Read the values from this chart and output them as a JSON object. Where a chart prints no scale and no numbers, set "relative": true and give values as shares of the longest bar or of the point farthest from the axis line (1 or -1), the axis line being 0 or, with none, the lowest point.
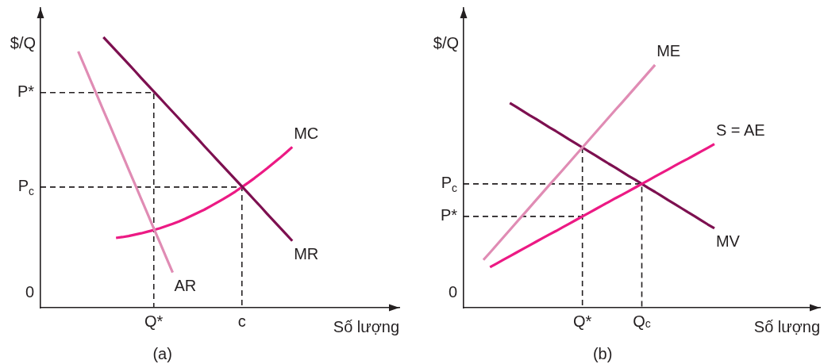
{
  "chart_data": [
    {
      "type": "line",
      "title": "(a)",
      "xlabel": "Số lượng",
      "ylabel": "$/Q",
      "relative": true,
      "categories": [
        null,
        null,
        null,
        null,
        null,
        null,
        null,
        null,
        null,
        null,
        null,
        null,
        null,
        null,
        null,
        null,
        null,
        null,
        "Q*",
        null,
        null,
        null,
        null,
        null,
        null,
        null,
        null,
        null,
        null,
        null,
        null,
        null,
        "c",
        null,
        null,
        null,
        null,
        null,
        null,
        null,
        null,
        null,
        null,
        null,
        null,
        null,
        null,
        null,
        null,
        null,
        null,
        null,
        null,
        null,
        null,
        null,
        null,
        null
      ],
      "annotations": [
        "0"
      ],
      "series": [
        {
          "name": "AR",
          "color": "#e08cb4",
          "values": [
            null,
            null,
            null,
            null,
            null,
            null,
            0.947,
            0.893,
            0.838,
            0.784,
            0.729,
            0.675,
            0.62,
            0.566,
            0.511,
            0.457,
            0.402,
            0.348,
            0.293,
            0.239,
            0.184,
            0.13,
            null,
            null,
            null,
            null,
            null,
            null,
            null,
            null,
            null,
            null,
            null,
            null,
            null,
            null,
            null,
            null,
            null,
            null,
            null,
            null,
            null,
            null,
            null,
            null,
            null,
            null,
            null,
            null,
            null,
            null,
            null,
            null,
            null,
            null,
            null,
            null
          ]
        },
        {
          "name": "MR",
          "color": "#7d1050",
          "values": [
            null,
            null,
            null,
            null,
            null,
            null,
            null,
            null,
            null,
            null,
            1,
            0.975,
            0.95,
            0.925,
            0.9,
            0.875,
            0.849,
            0.824,
            0.799,
            0.774,
            0.749,
            0.724,
            0.699,
            0.674,
            0.649,
            0.624,
            0.598,
            0.573,
            0.548,
            0.523,
            0.498,
            0.473,
            0.448,
            0.423,
            0.398,
            0.373,
            0.347,
            0.322,
            0.297,
            0.272,
            0.247,
            null,
            null,
            null,
            null,
            null,
            null,
            null,
            null,
            null,
            null,
            null,
            null,
            null,
            null,
            null,
            null,
            null
          ]
        },
        {
          "name": "MC",
          "color": "#ec1a84",
          "values": [
            null,
            null,
            null,
            null,
            null,
            null,
            null,
            null,
            null,
            null,
            null,
            null,
            0.258,
            0.261,
            0.265,
            0.27,
            0.275,
            0.281,
            0.287,
            0.294,
            0.302,
            0.31,
            0.319,
            0.329,
            0.34,
            0.351,
            0.362,
            0.375,
            0.388,
            0.401,
            0.415,
            0.43,
            0.446,
            0.462,
            0.479,
            0.497,
            0.515,
            0.534,
            0.553,
            0.573,
            0.594,
            null,
            null,
            null,
            null,
            null,
            null,
            null,
            null,
            null,
            null,
            null,
            null,
            null,
            null,
            null,
            null,
            null
          ]
        },
        {
          "type": "step",
          "name": "P*",
          "color": "#231f20",
          "line_style": "dashed",
          "values": [
            0.795,
            0.795,
            0.795,
            0.795,
            0.795,
            0.795,
            0.795,
            0.795,
            0.795,
            0.795,
            0.795,
            0.795,
            0.795,
            0.795,
            0.795,
            0.795,
            0.795,
            0.795,
            0.795,
            0,
            null,
            null,
            null,
            null,
            null,
            null,
            null,
            null,
            null,
            null,
            null,
            null,
            null,
            null,
            null,
            null,
            null,
            null,
            null,
            null,
            null,
            null,
            null,
            null,
            null,
            null,
            null,
            null,
            null,
            null,
            null,
            null,
            null,
            null,
            null,
            null,
            null,
            null
          ]
        },
        {
          "type": "step",
          "name": "P$_{c}$",
          "color": "#231f20",
          "line_style": "dashed",
          "values": [
            0.446,
            0.446,
            0.446,
            0.446,
            0.446,
            0.446,
            0.446,
            0.446,
            0.446,
            0.446,
            0.446,
            0.446,
            0.446,
            0.446,
            0.446,
            0.446,
            0.446,
            0.446,
            0.446,
            0.446,
            0.446,
            0.446,
            0.446,
            0.446,
            0.446,
            0.446,
            0.446,
            0.446,
            0.446,
            0.446,
            0.446,
            0.446,
            0.446,
            0,
            null,
            null,
            null,
            null,
            null,
            null,
            null,
            null,
            null,
            null,
            null,
            null,
            null,
            null,
            null,
            null,
            null,
            null,
            null,
            null,
            null,
            null,
            null,
            null
          ]
        }
      ]
    },
    {
      "type": "line",
      "title": "(b)",
      "xlabel": "Số lượng",
      "ylabel": "$/Q",
      "relative": true,
      "categories": [
        null,
        null,
        null,
        null,
        null,
        null,
        null,
        null,
        null,
        null,
        null,
        null,
        null,
        null,
        null,
        null,
        null,
        null,
        "Q*",
        null,
        null,
        null,
        null,
        null,
        null,
        null,
        null,
        "Q$_{c}$",
        null,
        null,
        null,
        null,
        null,
        null,
        null,
        null,
        null,
        null,
        null,
        null,
        null,
        null,
        null,
        null,
        null,
        null,
        null,
        null,
        null,
        null,
        null,
        null,
        null,
        null,
        null
      ],
      "annotations": [
        "0"
      ],
      "series": [
        {
          "name": "ME",
          "color": "#e08cb4",
          "values": [
            null,
            null,
            null,
            0.197,
            0.227,
            0.258,
            0.289,
            0.32,
            0.351,
            0.382,
            0.413,
            0.444,
            0.475,
            0.506,
            0.536,
            0.567,
            0.598,
            0.629,
            0.66,
            0.691,
            0.722,
            0.753,
            0.784,
            0.815,
            0.845,
            0.876,
            0.907,
            0.938,
            0.969,
            1,
            null,
            null,
            null,
            null,
            null,
            null,
            null,
            null,
            null,
            null,
            null,
            null,
            null,
            null,
            null,
            null,
            null,
            null,
            null,
            null,
            null,
            null,
            null,
            null,
            null
          ]
        },
        {
          "name": "S = AE",
          "color": "#ec1a84",
          "values": [
            null,
            null,
            null,
            null,
            0.167,
            0.182,
            0.197,
            0.212,
            0.227,
            0.242,
            0.257,
            0.272,
            0.287,
            0.302,
            0.316,
            0.331,
            0.346,
            0.361,
            0.376,
            0.391,
            0.406,
            0.421,
            0.436,
            0.451,
            0.465,
            0.48,
            0.495,
            0.51,
            0.525,
            0.54,
            0.555,
            0.57,
            0.585,
            0.6,
            0.614,
            0.629,
            0.644,
            0.659,
            0.674,
            null,
            null,
            null,
            null,
            null,
            null,
            null,
            null,
            null,
            null,
            null,
            null,
            null,
            null,
            null,
            null
          ]
        },
        {
          "name": "MV",
          "color": "#7d1050",
          "values": [
            null,
            null,
            null,
            null,
            null,
            null,
            null,
            0.843,
            0.827,
            0.81,
            0.793,
            0.777,
            0.76,
            0.743,
            0.727,
            0.71,
            0.693,
            0.677,
            0.66,
            0.643,
            0.627,
            0.61,
            0.593,
            0.577,
            0.56,
            0.543,
            0.527,
            0.51,
            0.493,
            0.477,
            0.46,
            0.443,
            0.427,
            0.41,
            0.393,
            0.377,
            0.36,
            0.343,
            0.327,
            null,
            null,
            null,
            null,
            null,
            null,
            null,
            null,
            null,
            null,
            null,
            null,
            null,
            null,
            null,
            null
          ]
        },
        {
          "type": "step",
          "name": "P$_{c}$",
          "color": "#231f20",
          "line_style": "dashed",
          "values": [
            0.51,
            0.51,
            0.51,
            0.51,
            0.51,
            0.51,
            0.51,
            0.51,
            0.51,
            0.51,
            0.51,
            0.51,
            0.51,
            0.51,
            0.51,
            0.51,
            0.51,
            0.51,
            0.51,
            0.51,
            0.51,
            0.51,
            0.51,
            0.51,
            0.51,
            0.51,
            0.51,
            0.51,
            0,
            null,
            null,
            null,
            null,
            null,
            null,
            null,
            null,
            null,
            null,
            null,
            null,
            null,
            null,
            null,
            null,
            null,
            null,
            null,
            null,
            null,
            null,
            null,
            null,
            null,
            null
          ]
        },
        {
          "name": "P*",
          "color": "#231f20",
          "line_style": "dashed",
          "values": [
            0.376,
            0.376,
            0.376,
            0.376,
            0.376,
            0.376,
            0.376,
            0.376,
            0.376,
            0.376,
            0.376,
            0.376,
            0.376,
            0.376,
            0.376,
            0.376,
            0.376,
            0.376,
            0.376,
            null,
            null,
            null,
            null,
            null,
            null,
            null,
            null,
            null,
            null,
            null,
            null,
            null,
            null,
            null,
            null,
            null,
            null,
            null,
            null,
            null,
            null,
            null,
            null,
            null,
            null,
            null,
            null,
            null,
            null,
            null,
            null,
            null,
            null,
            null,
            null
          ]
        },
        {
          "type": "step",
          "color": "#231f20",
          "line_style": "dashed",
          "values": [
            null,
            null,
            null,
            null,
            null,
            null,
            null,
            null,
            null,
            null,
            null,
            null,
            null,
            null,
            null,
            null,
            null,
            null,
            0.66,
            0,
            null,
            null,
            null,
            null,
            null,
            null,
            null,
            null,
            null,
            null,
            null,
            null,
            null,
            null,
            null,
            null,
            null,
            null,
            null,
            null,
            null,
            null,
            null,
            null,
            null,
            null,
            null,
            null,
            null,
            null,
            null,
            null,
            null,
            null,
            null
          ]
        }
      ]
    }
  ]
}
